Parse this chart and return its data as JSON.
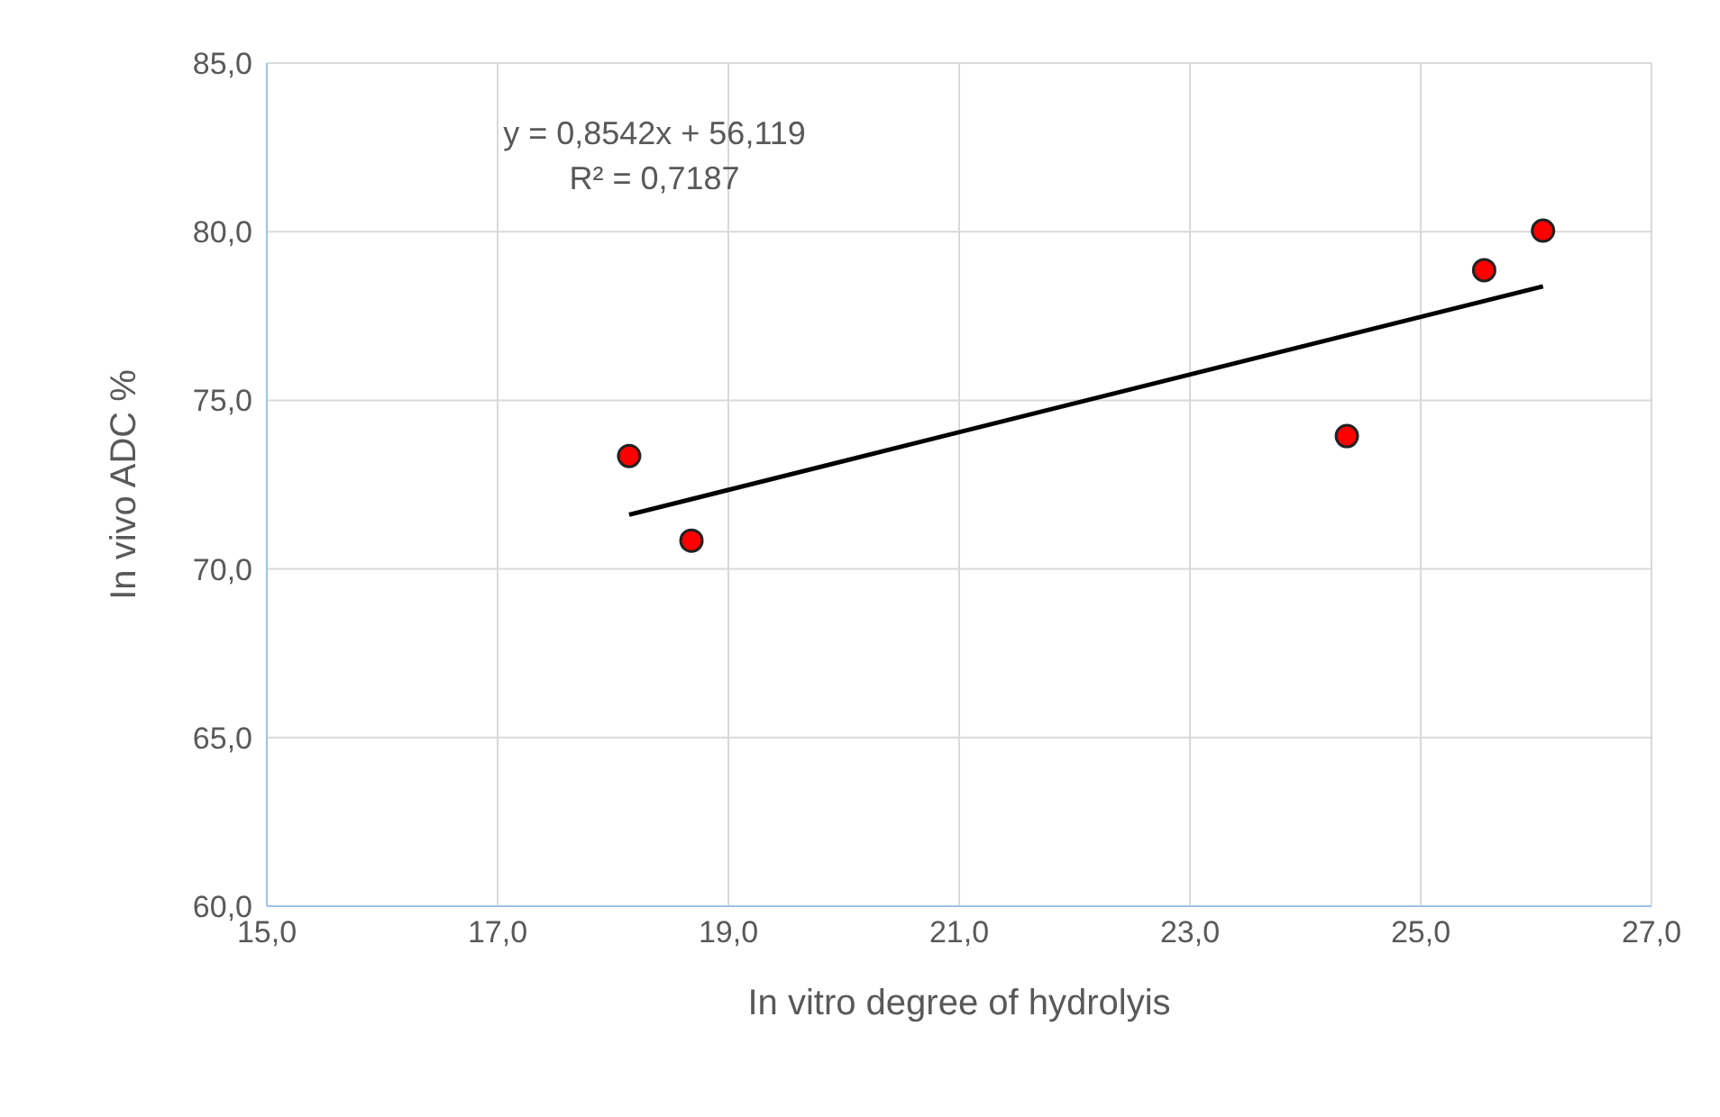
{
  "chart_data": {
    "type": "scatter",
    "xlabel": "In vitro degree of hydrolyis",
    "ylabel": "In vivo ADC %",
    "annotations": [
      "y = 0,8542x + 56,119",
      "R² = 0,7187"
    ],
    "xlim": [
      15,
      27
    ],
    "xticks": [
      {
        "value": 15,
        "label": "15,0"
      },
      {
        "value": 17,
        "label": "17,0"
      },
      {
        "value": 19,
        "label": "19,0"
      },
      {
        "value": 21,
        "label": "21,0"
      },
      {
        "value": 23,
        "label": "23,0"
      },
      {
        "value": 25,
        "label": "25,0"
      },
      {
        "value": 27,
        "label": "27,0"
      }
    ],
    "ylim": [
      60,
      85
    ],
    "yticks": [
      {
        "value": 60,
        "label": "60,0"
      },
      {
        "value": 65,
        "label": "65,0"
      },
      {
        "value": 70,
        "label": "70,0"
      },
      {
        "value": 75,
        "label": "75,0"
      },
      {
        "value": 80,
        "label": "80,0"
      },
      {
        "value": 85,
        "label": "85,0"
      }
    ],
    "grid": true,
    "marker": "circle",
    "series": [
      {
        "color": "#ff0000",
        "x": [
          18.14,
          18.68,
          24.36,
          25.55,
          26.06
        ],
        "values": [
          73.35,
          70.84,
          73.94,
          78.86,
          80.03
        ]
      },
      {
        "type": "line",
        "color": "#000000",
        "marker": "none",
        "line_style": "solid",
        "x": [
          18.14,
          26.06
        ],
        "values": [
          71.61,
          78.38
        ]
      }
    ]
  }
}
